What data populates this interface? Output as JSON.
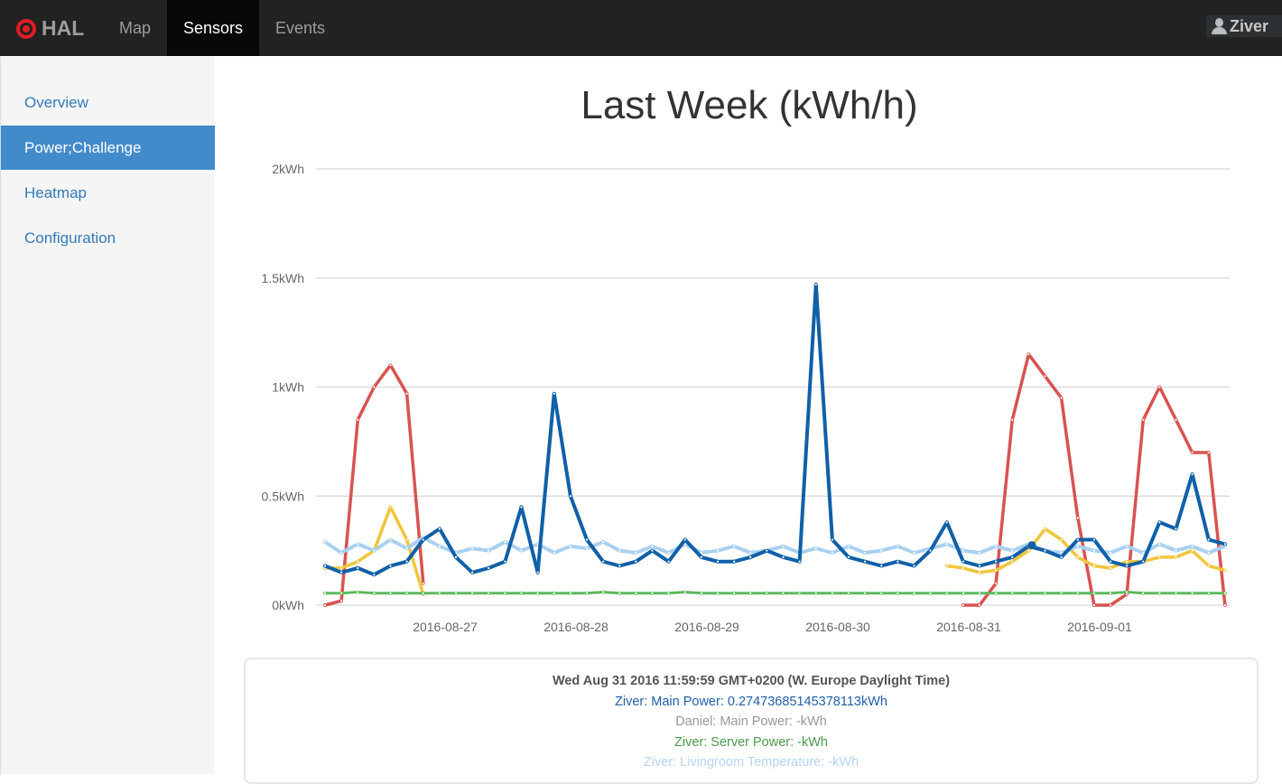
{
  "navbar": {
    "brand": "HAL",
    "brand_color": "#e21d24",
    "items": [
      {
        "label": "Map",
        "active": false
      },
      {
        "label": "Sensors",
        "active": true
      },
      {
        "label": "Events",
        "active": false
      }
    ],
    "user": "Ziver",
    "user_icon": "user-icon"
  },
  "sidebar": {
    "items": [
      {
        "label": "Overview",
        "active": false
      },
      {
        "label": "Power;Challenge",
        "active": true
      },
      {
        "label": "Heatmap",
        "active": false
      },
      {
        "label": "Configuration",
        "active": false
      }
    ]
  },
  "chart_data": {
    "type": "line",
    "title": "Last Week (kWh/h)",
    "ylim": [
      0,
      2
    ],
    "yticks": [
      {
        "v": 0,
        "label": "0kWh"
      },
      {
        "v": 0.5,
        "label": "0.5kWh"
      },
      {
        "v": 1,
        "label": "1kWh"
      },
      {
        "v": 1.5,
        "label": "1.5kWh"
      },
      {
        "v": 2,
        "label": "2kWh"
      }
    ],
    "xticks": [
      "2016-08-27",
      "2016-08-28",
      "2016-08-29",
      "2016-08-30",
      "2016-08-31",
      "2016-09-01"
    ],
    "x_start": "2016-08-26 02:00",
    "x_step_hours": 3,
    "grid": true,
    "series": [
      {
        "color": "#d9534f",
        "values": [
          0,
          0.02,
          0.85,
          1.0,
          1.1,
          0.97,
          0.1,
          null,
          null,
          null,
          null,
          null,
          null,
          null,
          null,
          null,
          null,
          null,
          null,
          null,
          null,
          null,
          null,
          null,
          null,
          null,
          null,
          null,
          null,
          null,
          null,
          null,
          null,
          null,
          null,
          null,
          null,
          null,
          null,
          0,
          0,
          0.1,
          0.85,
          1.15,
          1.05,
          0.95,
          0.4,
          0,
          0,
          0.05,
          0.85,
          1.0,
          0.85,
          0.7,
          0.7,
          0
        ]
      },
      {
        "color": "#f0c53a",
        "values": [
          0.17,
          0.17,
          0.2,
          0.25,
          0.45,
          0.3,
          0.05,
          null,
          null,
          null,
          null,
          null,
          null,
          null,
          null,
          null,
          null,
          null,
          null,
          null,
          null,
          null,
          null,
          null,
          null,
          null,
          null,
          null,
          null,
          null,
          null,
          null,
          null,
          null,
          null,
          null,
          null,
          null,
          0.18,
          0.17,
          0.15,
          0.16,
          0.2,
          0.25,
          0.35,
          0.3,
          0.22,
          0.18,
          0.17,
          0.2,
          0.2,
          0.22,
          0.22,
          0.25,
          0.18,
          0.16
        ]
      },
      {
        "color": "#a8d0f0",
        "values": [
          0.29,
          0.24,
          0.28,
          0.25,
          0.3,
          0.26,
          0.31,
          0.27,
          0.24,
          0.26,
          0.25,
          0.29,
          0.25,
          0.28,
          0.24,
          0.27,
          0.26,
          0.29,
          0.25,
          0.24,
          0.27,
          0.24,
          0.28,
          0.24,
          0.25,
          0.27,
          0.24,
          0.25,
          0.27,
          0.24,
          0.26,
          0.24,
          0.27,
          0.24,
          0.25,
          0.27,
          0.24,
          0.26,
          0.28,
          0.25,
          0.24,
          0.27,
          0.25,
          0.28,
          0.25,
          0.24,
          0.27,
          0.25,
          0.24,
          0.27,
          0.24,
          0.28,
          0.25,
          0.27,
          0.24,
          0.27
        ]
      },
      {
        "color": "#5cb85c",
        "values": [
          0.055,
          0.055,
          0.06,
          0.055,
          0.055,
          0.055,
          0.055,
          0.055,
          0.055,
          0.055,
          0.055,
          0.055,
          0.055,
          0.055,
          0.055,
          0.055,
          0.055,
          0.06,
          0.055,
          0.055,
          0.055,
          0.055,
          0.06,
          0.055,
          0.055,
          0.055,
          0.055,
          0.055,
          0.055,
          0.055,
          0.055,
          0.055,
          0.055,
          0.055,
          0.055,
          0.055,
          0.055,
          0.055,
          0.055,
          0.055,
          0.055,
          0.055,
          0.055,
          0.055,
          0.055,
          0.055,
          0.055,
          0.055,
          0.055,
          0.06,
          0.055,
          0.055,
          0.055,
          0.055,
          0.055,
          0.055
        ]
      },
      {
        "name": "Ziver: Main Power",
        "color": "#1060a8",
        "values": [
          0.18,
          0.15,
          0.17,
          0.14,
          0.18,
          0.2,
          0.3,
          0.35,
          0.22,
          0.15,
          0.17,
          0.2,
          0.45,
          0.15,
          0.97,
          0.5,
          0.3,
          0.2,
          0.18,
          0.2,
          0.25,
          0.2,
          0.3,
          0.22,
          0.2,
          0.2,
          0.22,
          0.25,
          0.22,
          0.2,
          1.47,
          0.3,
          0.22,
          0.2,
          0.18,
          0.2,
          0.18,
          0.25,
          0.38,
          0.2,
          0.18,
          0.2,
          0.22,
          0.27,
          0.25,
          0.22,
          0.3,
          0.3,
          0.2,
          0.18,
          0.2,
          0.38,
          0.35,
          0.6,
          0.3,
          0.28
        ]
      }
    ]
  },
  "tooltip": {
    "header": "Wed Aug 31 2016 11:59:59 GMT+0200 (W. Europe Daylight Time)",
    "rows": [
      {
        "text": "Ziver: Main Power: 0.27473685145378113kWh",
        "color": "#1f5fa6"
      },
      {
        "text": "Daniel: Main Power: -kWh",
        "color": "#999999"
      },
      {
        "text": "Ziver: Server Power: -kWh",
        "color": "#4a9a4a"
      },
      {
        "text": "Ziver: Livingroom Temperature: -kWh",
        "color": "#b5d5f0"
      }
    ]
  }
}
